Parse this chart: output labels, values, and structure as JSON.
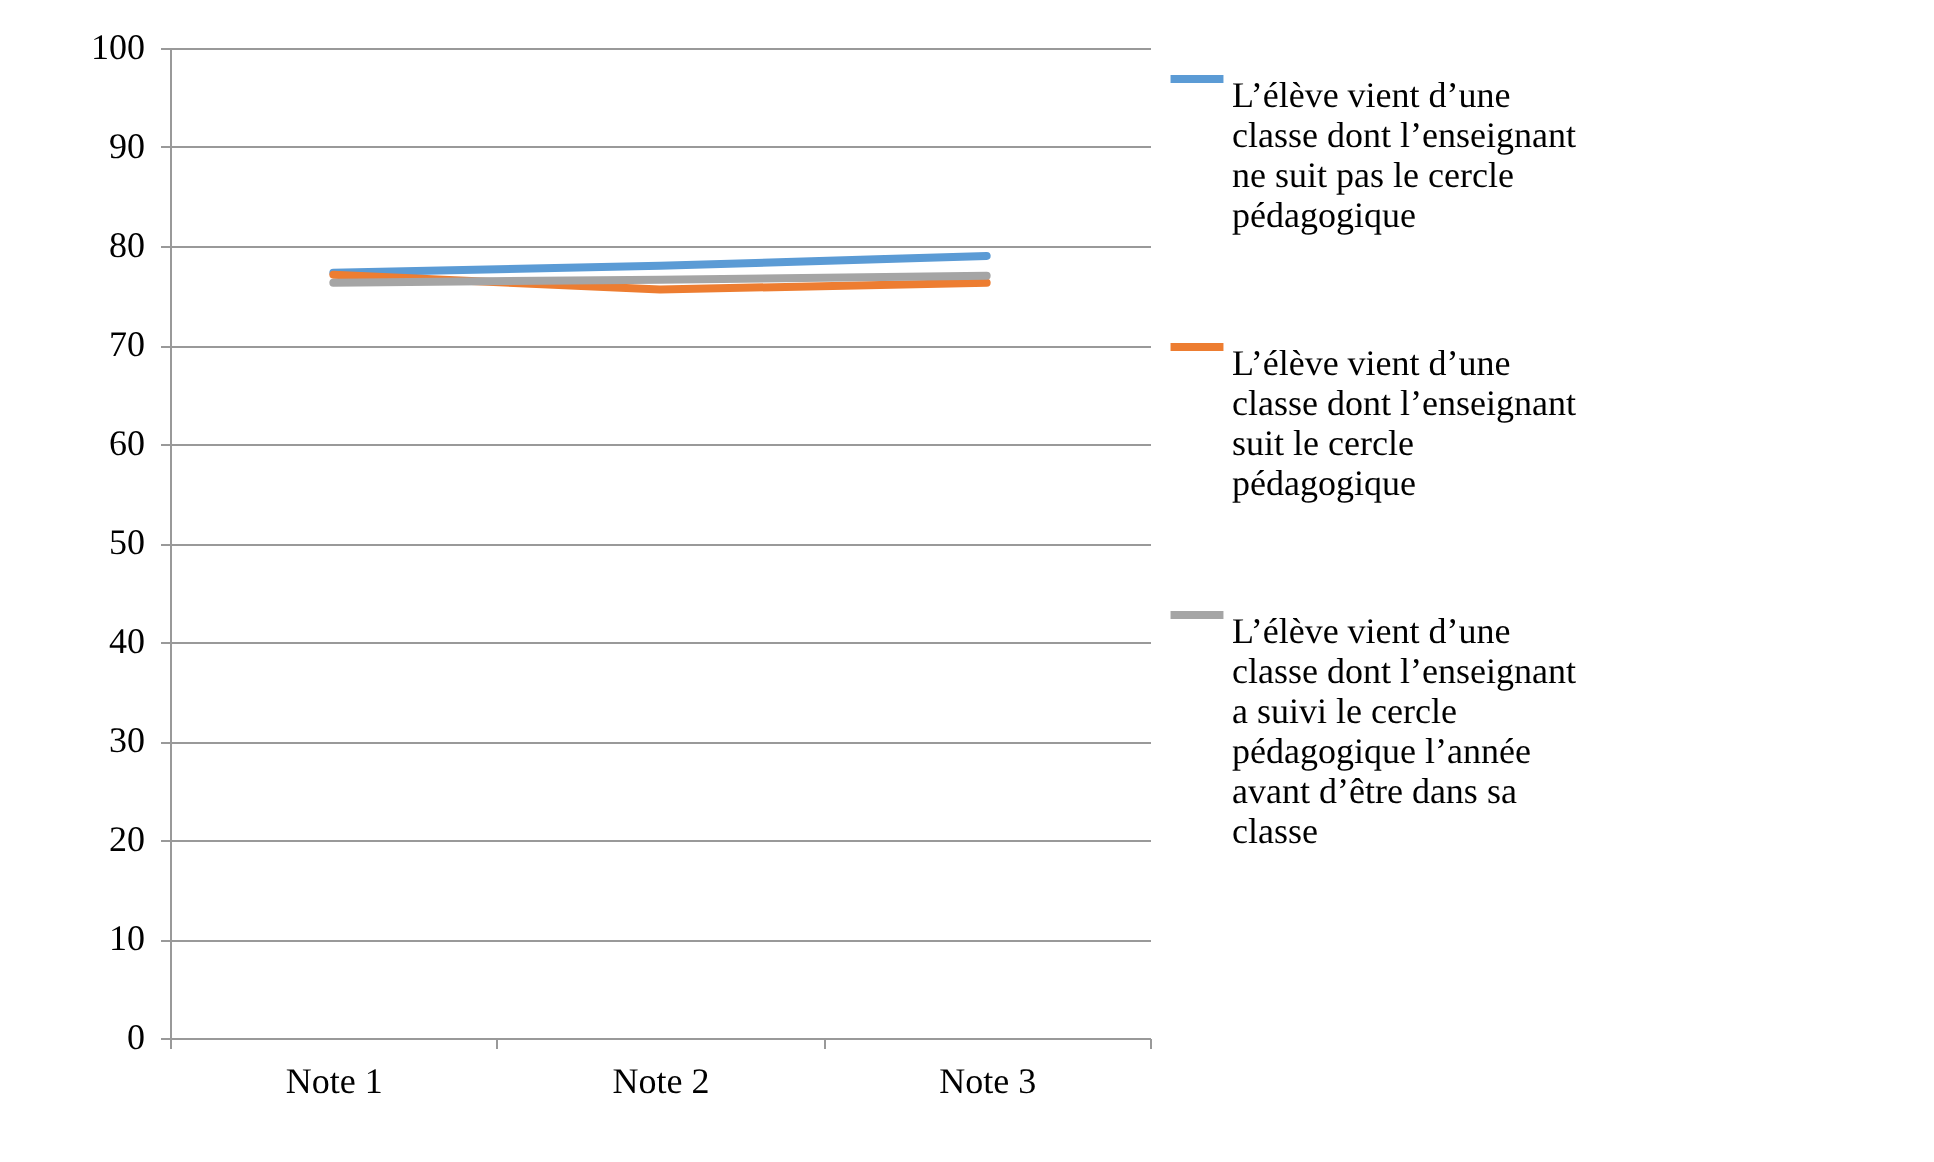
{
  "chart_data": {
    "type": "line",
    "categories": [
      "Note 1",
      "Note 2",
      "Note 3"
    ],
    "series": [
      {
        "name": "L’élève vient d’une classe dont l’enseignant ne suit pas le cercle pédagogique",
        "color": "#5b9bd5",
        "values": [
          77.3,
          78.0,
          79.0
        ]
      },
      {
        "name": "L’élève vient d’une classe dont l’enseignant suit le cercle pédagogique",
        "color": "#ed7d31",
        "values": [
          77.1,
          75.6,
          76.3
        ]
      },
      {
        "name": "L’élève vient d’une classe dont l’enseignant a suivi le cercle pédagogique l’année avant d’être dans sa classe",
        "color": "#a5a5a5",
        "values": [
          76.3,
          76.6,
          77.0
        ]
      }
    ],
    "ylim": [
      0,
      100
    ],
    "yticks": [
      0,
      10,
      20,
      30,
      40,
      50,
      60,
      70,
      80,
      90,
      100
    ],
    "grid": "y",
    "legend": "right",
    "marker": "none",
    "line_style": "solid"
  }
}
